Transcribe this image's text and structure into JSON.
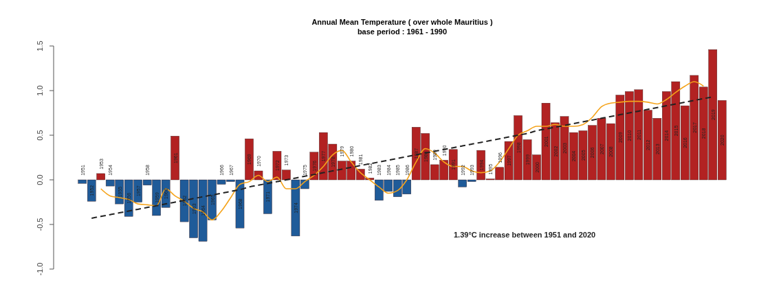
{
  "chart_data": {
    "type": "bar",
    "title": "Annual Mean Temperature ( over whole Mauritius  )",
    "subtitle": "base period : 1961 - 1990",
    "categories": [
      "1951",
      "1952",
      "1953",
      "1954",
      "1955",
      "1956",
      "1957",
      "1958",
      "1959",
      "1960",
      "1961",
      "1962",
      "1963",
      "1964",
      "1965",
      "1966",
      "1967",
      "1968",
      "1969",
      "1970",
      "1971",
      "1972",
      "1973",
      "1974",
      "1975",
      "1976",
      "1977",
      "1978",
      "1979",
      "1980",
      "1981",
      "1982",
      "1983",
      "1984",
      "1985",
      "1986",
      "1987",
      "1988",
      "1989",
      "1990",
      "1991",
      "1992",
      "1993",
      "1994",
      "1995",
      "1996",
      "1997",
      "1998",
      "1999",
      "2000",
      "2001",
      "2002",
      "2003",
      "2004",
      "2005",
      "2006",
      "2007",
      "2008",
      "2009",
      "2010",
      "2011",
      "2012",
      "2013",
      "2014",
      "2015",
      "2016",
      "2017",
      "2018",
      "2019",
      "2020"
    ],
    "series": [
      {
        "values": [
          -0.04,
          -0.24,
          0.07,
          -0.07,
          -0.27,
          -0.41,
          -0.25,
          -0.06,
          -0.4,
          -0.31,
          0.49,
          -0.47,
          -0.65,
          -0.69,
          -0.45,
          -0.05,
          -0.02,
          -0.54,
          0.46,
          0.1,
          -0.38,
          0.32,
          0.11,
          -0.63,
          -0.1,
          0.31,
          0.53,
          0.4,
          0.21,
          0.21,
          0.12,
          0.02,
          -0.23,
          -0.13,
          -0.19,
          -0.16,
          0.59,
          0.52,
          0.17,
          0.22,
          0.34,
          -0.08,
          -0.02,
          0.33,
          0.01,
          0.14,
          0.43,
          0.72,
          0.45,
          0.28,
          0.86,
          0.64,
          0.71,
          0.53,
          0.55,
          0.61,
          0.69,
          0.63,
          0.95,
          0.99,
          1.01,
          0.78,
          0.69,
          0.99,
          1.1,
          0.83,
          1.17,
          1.04,
          1.46,
          0.89
        ],
        "colors": [
          "#1f5b99",
          "#1f5b99",
          "#b22222",
          "#1f5b99",
          "#1f5b99",
          "#1f5b99",
          "#1f5b99",
          "#1f5b99",
          "#1f5b99",
          "#1f5b99",
          "#b22222",
          "#1f5b99",
          "#1f5b99",
          "#1f5b99",
          "#1f5b99",
          "#1f5b99",
          "#1f5b99",
          "#1f5b99",
          "#b22222",
          "#b22222",
          "#1f5b99",
          "#b22222",
          "#b22222",
          "#1f5b99",
          "#1f5b99",
          "#b22222",
          "#b22222",
          "#b22222",
          "#b22222",
          "#b22222",
          "#b22222",
          "#b22222",
          "#1f5b99",
          "#1f5b99",
          "#1f5b99",
          "#1f5b99",
          "#b22222",
          "#b22222",
          "#b22222",
          "#b22222",
          "#b22222",
          "#1f5b99",
          "#1f5b99",
          "#b22222",
          "#b22222",
          "#b22222",
          "#b22222",
          "#b22222",
          "#b22222",
          "#b22222",
          "#b22222",
          "#b22222",
          "#b22222",
          "#b22222",
          "#b22222",
          "#b22222",
          "#b22222",
          "#b22222",
          "#b22222",
          "#b22222",
          "#b22222",
          "#b22222",
          "#b22222",
          "#b22222",
          "#b22222",
          "#b22222",
          "#b22222",
          "#b22222",
          "#b22222",
          "#b22222"
        ]
      },
      {
        "type": "line",
        "color": "#f5a31a",
        "line_style": "solid",
        "values": [
          null,
          null,
          -0.1,
          -0.18,
          -0.2,
          -0.22,
          -0.27,
          -0.28,
          -0.29,
          -0.1,
          -0.18,
          -0.24,
          -0.32,
          -0.36,
          -0.45,
          -0.35,
          -0.2,
          -0.05,
          -0.02,
          0.05,
          -0.02,
          0.03,
          -0.1,
          -0.1,
          -0.02,
          0.05,
          0.15,
          0.28,
          0.33,
          0.2,
          0.08,
          0.0,
          -0.08,
          -0.15,
          -0.12,
          0.0,
          0.2,
          0.35,
          0.3,
          0.2,
          0.15,
          0.15,
          0.1,
          0.08,
          0.1,
          0.2,
          0.35,
          0.5,
          0.55,
          0.6,
          0.6,
          0.62,
          0.6,
          0.6,
          0.62,
          0.7,
          0.82,
          0.86,
          0.87,
          0.88,
          0.88,
          0.87,
          0.85,
          0.9,
          0.98,
          1.05,
          1.1,
          1.05,
          null,
          null
        ]
      },
      {
        "type": "line",
        "color": "#222222",
        "line_style": "dashed",
        "values": [
          null,
          -0.43,
          -0.41,
          -0.39,
          -0.37,
          -0.35,
          -0.33,
          -0.31,
          -0.29,
          -0.27,
          -0.25,
          -0.23,
          -0.21,
          -0.19,
          -0.17,
          -0.15,
          -0.13,
          -0.11,
          -0.08,
          -0.06,
          -0.04,
          -0.02,
          0.0,
          0.02,
          0.04,
          0.06,
          0.08,
          0.1,
          0.12,
          0.14,
          0.16,
          0.18,
          0.2,
          0.22,
          0.24,
          0.26,
          0.28,
          0.3,
          0.32,
          0.34,
          0.36,
          0.38,
          0.4,
          0.42,
          0.44,
          0.46,
          0.48,
          0.5,
          0.52,
          0.55,
          0.57,
          0.59,
          0.61,
          0.63,
          0.65,
          0.67,
          0.69,
          0.71,
          0.73,
          0.75,
          0.77,
          0.79,
          0.81,
          0.83,
          0.85,
          0.87,
          0.89,
          0.91,
          0.93,
          null
        ]
      }
    ],
    "ylim": [
      -1.0,
      1.5
    ],
    "yticks": [
      {
        "value": -1.0,
        "label": "-1.0"
      },
      {
        "value": -0.5,
        "label": "-0.5"
      },
      {
        "value": 0.0,
        "label": "0.0"
      },
      {
        "value": 0.5,
        "label": "0.5"
      },
      {
        "value": 1.0,
        "label": "1.0"
      },
      {
        "value": 1.5,
        "label": "1.5"
      }
    ],
    "annotations": [
      "1.39°C increase  between 1951 and 2020"
    ],
    "grid": false
  }
}
